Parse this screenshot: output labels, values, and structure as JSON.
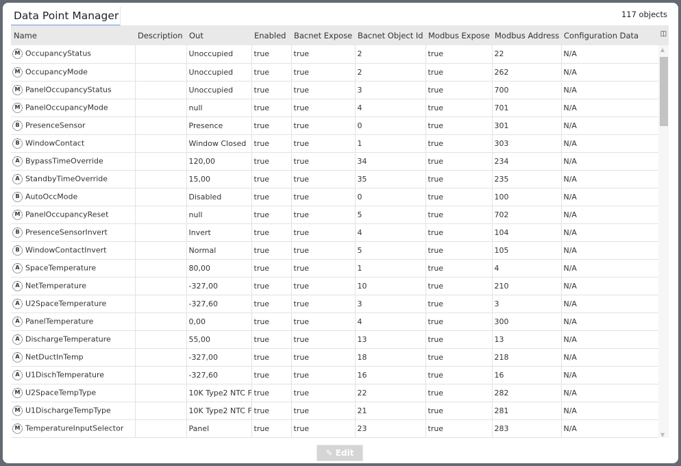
{
  "title": "Data Point Manager",
  "count": "117 objects",
  "columns": [
    "Name",
    "Description",
    "Out",
    "Enabled",
    "Bacnet Expose",
    "Bacnet Object Id",
    "Modbus Expose",
    "Modbus Address",
    "Configuration Data"
  ],
  "rows": [
    [
      "M",
      "OccupancyStatus",
      "",
      "Unoccupied",
      "true",
      "true",
      "2",
      "true",
      "22",
      "N/A"
    ],
    [
      "M",
      "OccupancyMode",
      "",
      "Unoccupied",
      "true",
      "true",
      "2",
      "true",
      "262",
      "N/A"
    ],
    [
      "M",
      "PanelOccupancyStatus",
      "",
      "Unoccupied",
      "true",
      "true",
      "3",
      "true",
      "700",
      "N/A"
    ],
    [
      "M",
      "PanelOccupancyMode",
      "",
      "null",
      "true",
      "true",
      "4",
      "true",
      "701",
      "N/A"
    ],
    [
      "B",
      "PresenceSensor",
      "",
      "Presence",
      "true",
      "true",
      "0",
      "true",
      "301",
      "N/A"
    ],
    [
      "B",
      "WindowContact",
      "",
      "Window Closed",
      "true",
      "true",
      "1",
      "true",
      "303",
      "N/A"
    ],
    [
      "A",
      "BypassTimeOverride",
      "",
      "120,00",
      "true",
      "true",
      "34",
      "true",
      "234",
      "N/A"
    ],
    [
      "A",
      "StandbyTimeOverride",
      "",
      "15,00",
      "true",
      "true",
      "35",
      "true",
      "235",
      "N/A"
    ],
    [
      "B",
      "AutoOccMode",
      "",
      "Disabled",
      "true",
      "true",
      "0",
      "true",
      "100",
      "N/A"
    ],
    [
      "M",
      "PanelOccupancyReset",
      "",
      "null",
      "true",
      "true",
      "5",
      "true",
      "702",
      "N/A"
    ],
    [
      "B",
      "PresenceSensorInvert",
      "",
      "Invert",
      "true",
      "true",
      "4",
      "true",
      "104",
      "N/A"
    ],
    [
      "B",
      "WindowContactInvert",
      "",
      "Normal",
      "true",
      "true",
      "5",
      "true",
      "105",
      "N/A"
    ],
    [
      "A",
      "SpaceTemperature",
      "",
      "80,00",
      "true",
      "true",
      "1",
      "true",
      "4",
      "N/A"
    ],
    [
      "A",
      "NetTemperature",
      "",
      "-327,00",
      "true",
      "true",
      "10",
      "true",
      "210",
      "N/A"
    ],
    [
      "A",
      "U2SpaceTemperature",
      "",
      "-327,60",
      "true",
      "true",
      "3",
      "true",
      "3",
      "N/A"
    ],
    [
      "A",
      "PanelTemperature",
      "",
      "0,00",
      "true",
      "true",
      "4",
      "true",
      "300",
      "N/A"
    ],
    [
      "A",
      "DischargeTemperature",
      "",
      "55,00",
      "true",
      "true",
      "13",
      "true",
      "13",
      "N/A"
    ],
    [
      "A",
      "NetDuctInTemp",
      "",
      "-327,00",
      "true",
      "true",
      "18",
      "true",
      "218",
      "N/A"
    ],
    [
      "A",
      "U1DischTemperature",
      "",
      "-327,60",
      "true",
      "true",
      "16",
      "true",
      "16",
      "N/A"
    ],
    [
      "M",
      "U2SpaceTempType",
      "",
      "10K Type2 NTC F",
      "true",
      "true",
      "22",
      "true",
      "282",
      "N/A"
    ],
    [
      "M",
      "U1DischargeTempType",
      "",
      "10K Type2 NTC F",
      "true",
      "true",
      "21",
      "true",
      "281",
      "N/A"
    ],
    [
      "M",
      "TemperatureInputSelector",
      "",
      "Panel",
      "true",
      "true",
      "23",
      "true",
      "283",
      "N/A"
    ]
  ],
  "edit_label": "Edit"
}
